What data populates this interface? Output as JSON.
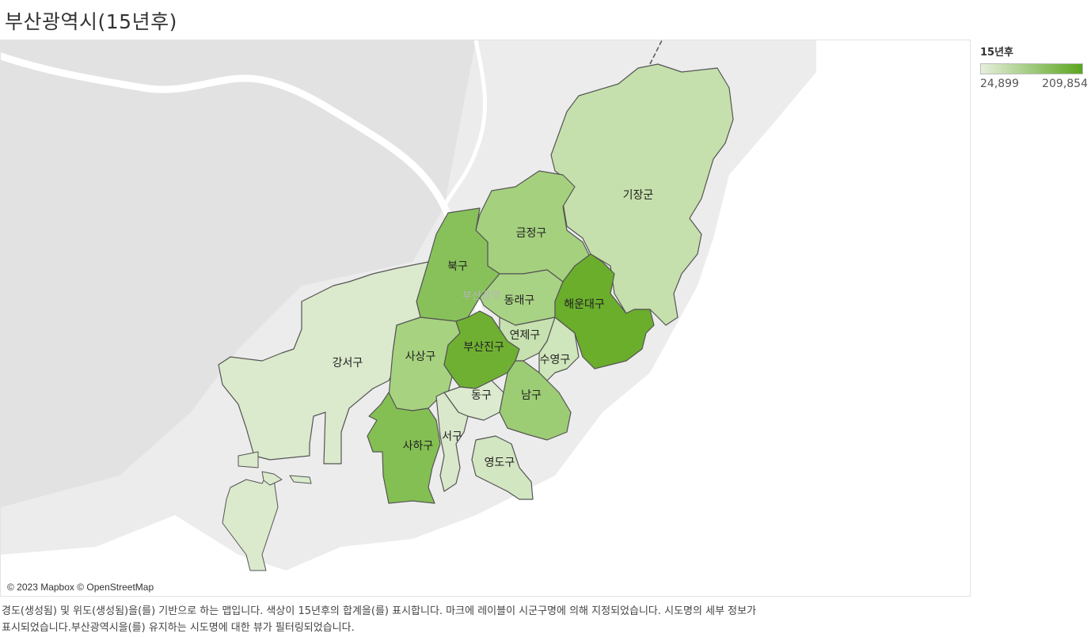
{
  "title": "부산광역시(15년후)",
  "legend": {
    "title": "15년후",
    "min_label": "24,899",
    "max_label": "209,854",
    "color_low": "#e6efdc",
    "color_high": "#5aa51e"
  },
  "map": {
    "attribution": "© 2023 Mapbox © OpenStreetMap",
    "background_label": "부산광역"
  },
  "regions": [
    {
      "name": "기장군",
      "color": "#c5e0ac"
    },
    {
      "name": "금정구",
      "color": "#a5d17e"
    },
    {
      "name": "북구",
      "color": "#88c15a"
    },
    {
      "name": "동래구",
      "color": "#a9d384"
    },
    {
      "name": "해운대구",
      "color": "#6aae2c"
    },
    {
      "name": "강서구",
      "color": "#dbe9cd"
    },
    {
      "name": "사상구",
      "color": "#a7d280"
    },
    {
      "name": "부산진구",
      "color": "#6fb032"
    },
    {
      "name": "연제구",
      "color": "#c7e1b0"
    },
    {
      "name": "수영구",
      "color": "#cfe5bb"
    },
    {
      "name": "동구",
      "color": "#dceacf"
    },
    {
      "name": "남구",
      "color": "#9ccc74"
    },
    {
      "name": "서구",
      "color": "#d9e8cb"
    },
    {
      "name": "사하구",
      "color": "#84bf53"
    },
    {
      "name": "영도구",
      "color": "#d3e6c2"
    }
  ],
  "caption": {
    "line1": "경도(생성됨) 및 위도(생성됨)을(를) 기반으로 하는 맵입니다. 색상이 15년후의 합계을(를) 표시합니다. 마크에 레이블이 시군구명에 의해 지정되었습니다. 시도명의 세부 정보가",
    "line2": "표시되었습니다.부산광역시을(를) 유지하는 시도명에 대한 뷰가 필터링되었습니다."
  }
}
